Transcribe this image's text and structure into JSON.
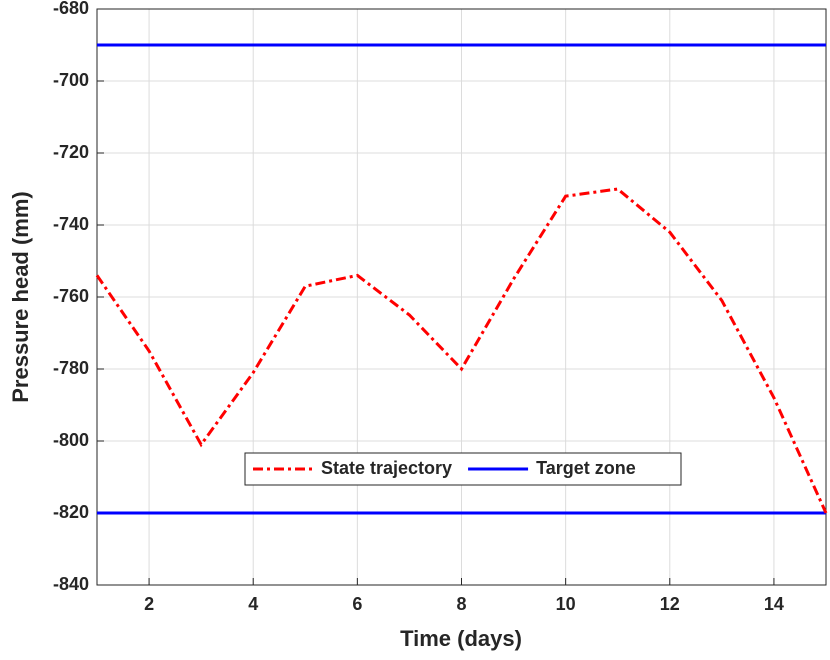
{
  "chart_data": {
    "type": "line",
    "xlabel": "Time (days)",
    "ylabel": "Pressure head (mm)",
    "x": [
      1,
      2,
      3,
      4,
      5,
      6,
      7,
      8,
      9,
      10,
      11,
      12,
      13,
      14,
      15
    ],
    "series": [
      {
        "name": "State trajectory",
        "color": "#ff0000",
        "style": "dashdot",
        "values": [
          -754,
          -775,
          -801,
          -781,
          -757,
          -754,
          -765,
          -780,
          -755,
          -732,
          -730,
          -742,
          -761,
          -788,
          -820
        ]
      }
    ],
    "target_zone": {
      "name": "Target zone",
      "color": "#0000ff",
      "lower": -820,
      "upper": -690
    },
    "xlim": [
      1,
      15
    ],
    "xticks": [
      2,
      4,
      6,
      8,
      10,
      12,
      14
    ],
    "ylim": [
      -840,
      -680
    ],
    "yticks": [
      -840,
      -820,
      -800,
      -780,
      -760,
      -740,
      -720,
      -700,
      -680
    ],
    "grid": true,
    "legend": "lower center"
  }
}
